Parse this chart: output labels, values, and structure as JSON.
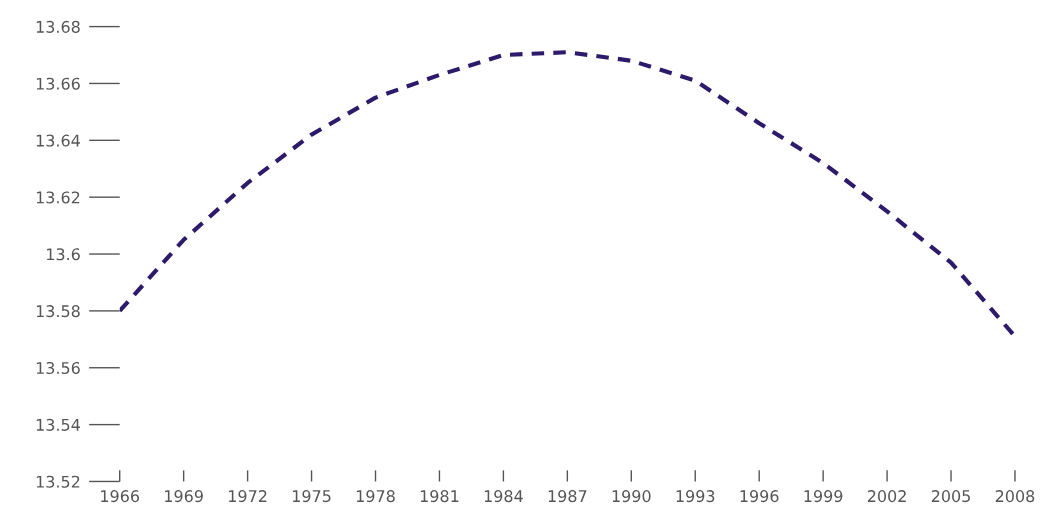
{
  "chart_data": {
    "type": "line",
    "x": [
      1966,
      1969,
      1972,
      1975,
      1978,
      1981,
      1984,
      1987,
      1990,
      1993,
      1996,
      1999,
      2002,
      2005,
      2008
    ],
    "series": [
      {
        "color": "#2e1a6b",
        "values": [
          13.58,
          13.605,
          13.625,
          13.642,
          13.655,
          13.663,
          13.67,
          13.671,
          13.668,
          13.661,
          13.646,
          13.632,
          13.615,
          13.597,
          13.571
        ]
      }
    ],
    "xlim": [
      1966,
      2008
    ],
    "xticks": [
      1966,
      1969,
      1972,
      1975,
      1978,
      1981,
      1984,
      1987,
      1990,
      1993,
      1996,
      1999,
      2002,
      2005,
      2008
    ],
    "ylim": [
      13.52,
      13.68
    ],
    "yticks": [
      13.52,
      13.54,
      13.56,
      13.58,
      13.6,
      13.62,
      13.64,
      13.66,
      13.68
    ],
    "grid": false,
    "marker": "none",
    "line_style": "dashed"
  }
}
